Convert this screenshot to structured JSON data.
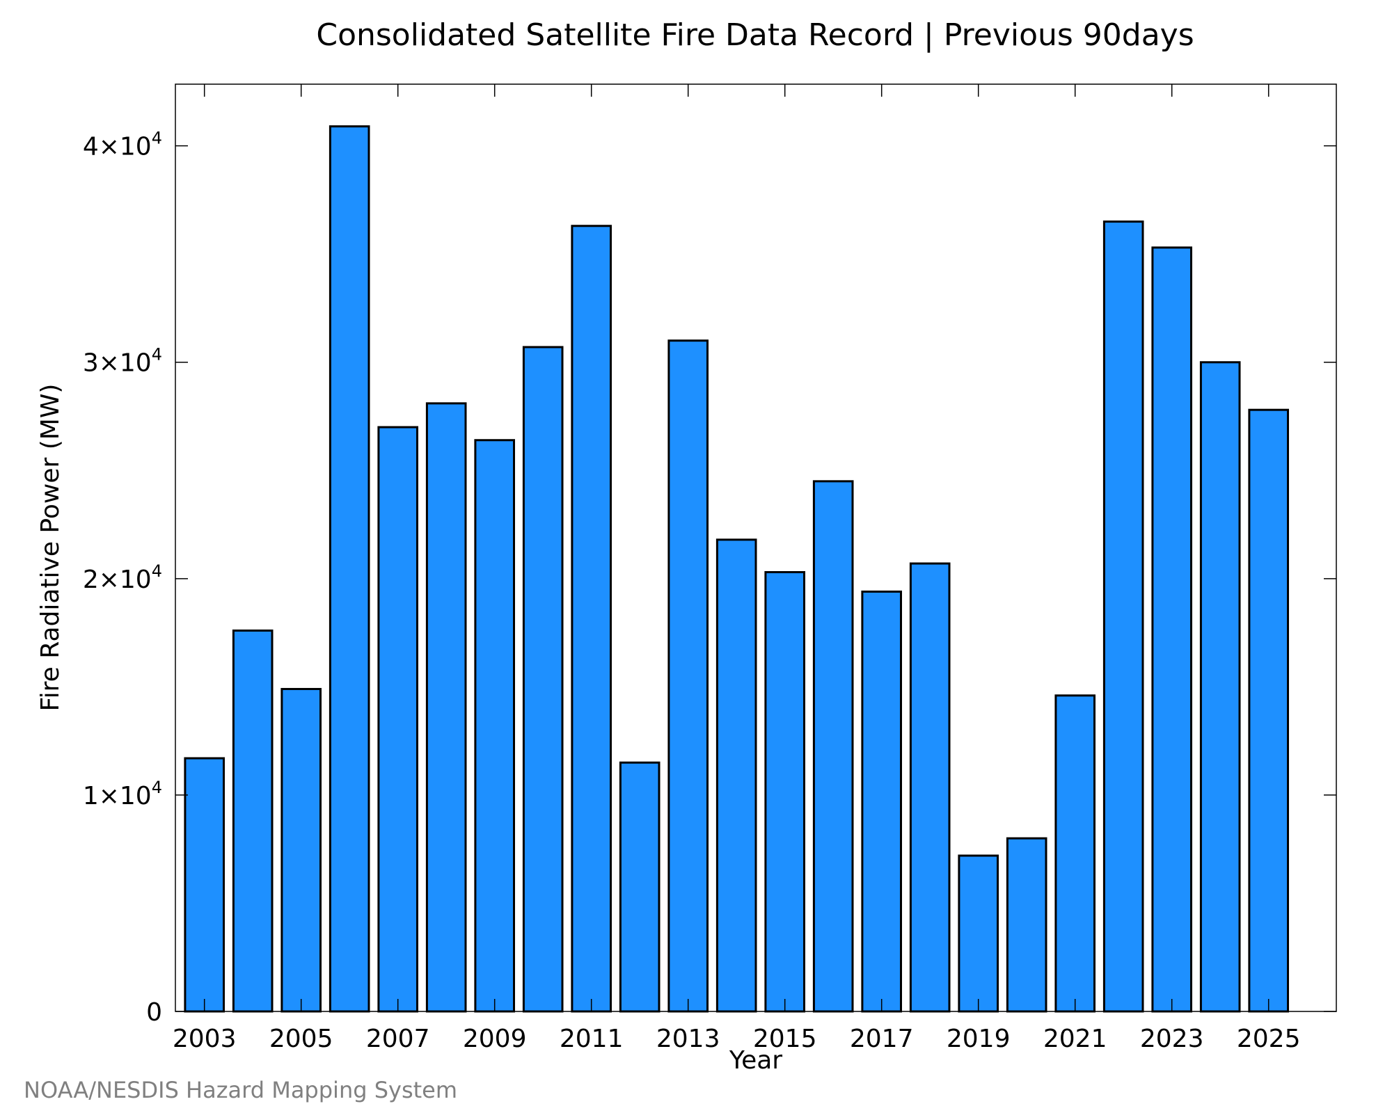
{
  "chart_data": {
    "type": "bar",
    "title": "Consolidated Satellite Fire Data Record | Previous 90days",
    "xlabel": "Year",
    "ylabel": "Fire Radiative Power (MW)",
    "categories": [
      "2003",
      "2004",
      "2005",
      "2006",
      "2007",
      "2008",
      "2009",
      "2010",
      "2011",
      "2012",
      "2013",
      "2014",
      "2015",
      "2016",
      "2017",
      "2018",
      "2019",
      "2020",
      "2021",
      "2022",
      "2023",
      "2024",
      "2025"
    ],
    "values": [
      11700,
      17600,
      14900,
      40900,
      27000,
      28100,
      26400,
      30700,
      36300,
      11500,
      31000,
      21800,
      20300,
      24500,
      19400,
      20700,
      7200,
      8000,
      14600,
      36500,
      35300,
      30000,
      27800
    ],
    "x_tick_labels": [
      "2003",
      "2005",
      "2007",
      "2009",
      "2011",
      "2013",
      "2015",
      "2017",
      "2019",
      "2021",
      "2023",
      "2025"
    ],
    "y_ticks": [
      {
        "value": 0,
        "mantissa": "0",
        "exp": ""
      },
      {
        "value": 10000,
        "mantissa": "1×10",
        "exp": "4"
      },
      {
        "value": 20000,
        "mantissa": "2×10",
        "exp": "4"
      },
      {
        "value": 30000,
        "mantissa": "3×10",
        "exp": "4"
      },
      {
        "value": 40000,
        "mantissa": "4×10",
        "exp": "4"
      }
    ],
    "ylim": [
      0,
      42850
    ],
    "xlim": [
      2002.4,
      2026.4
    ],
    "grid": false,
    "bar_color": "#1e90ff",
    "credit": "NOAA/NESDIS Hazard Mapping System"
  }
}
